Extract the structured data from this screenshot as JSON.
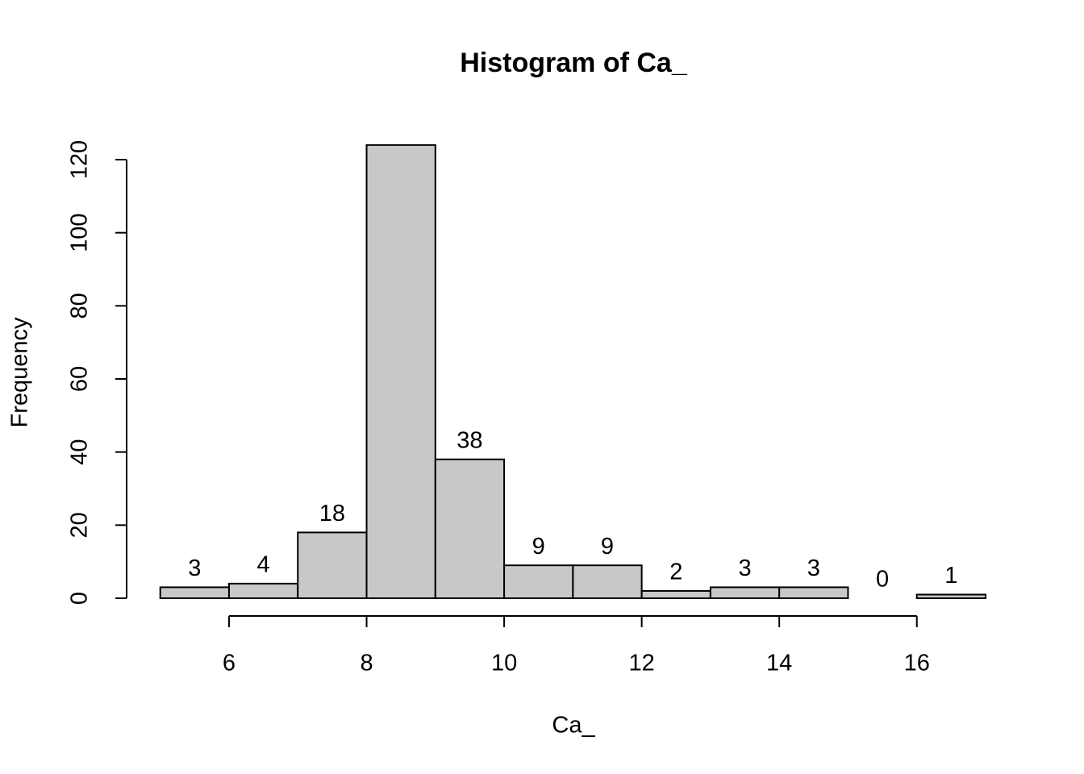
{
  "chart_data": {
    "type": "histogram",
    "title": "Histogram of Ca_",
    "x_label": "Ca_",
    "y_label": "Frequency",
    "bins": [
      5,
      6,
      7,
      8,
      9,
      10,
      11,
      12,
      13,
      14,
      15,
      16,
      17
    ],
    "values": [
      3,
      4,
      18,
      124,
      38,
      9,
      9,
      2,
      3,
      3,
      0,
      1
    ],
    "color": "#c8c8c8",
    "xlim": [
      5,
      17
    ],
    "xticks": [
      6,
      8,
      10,
      12,
      14,
      16
    ],
    "ylim": [
      0,
      124
    ],
    "yticks": [
      0,
      20,
      40,
      60,
      80,
      100,
      120
    ]
  }
}
